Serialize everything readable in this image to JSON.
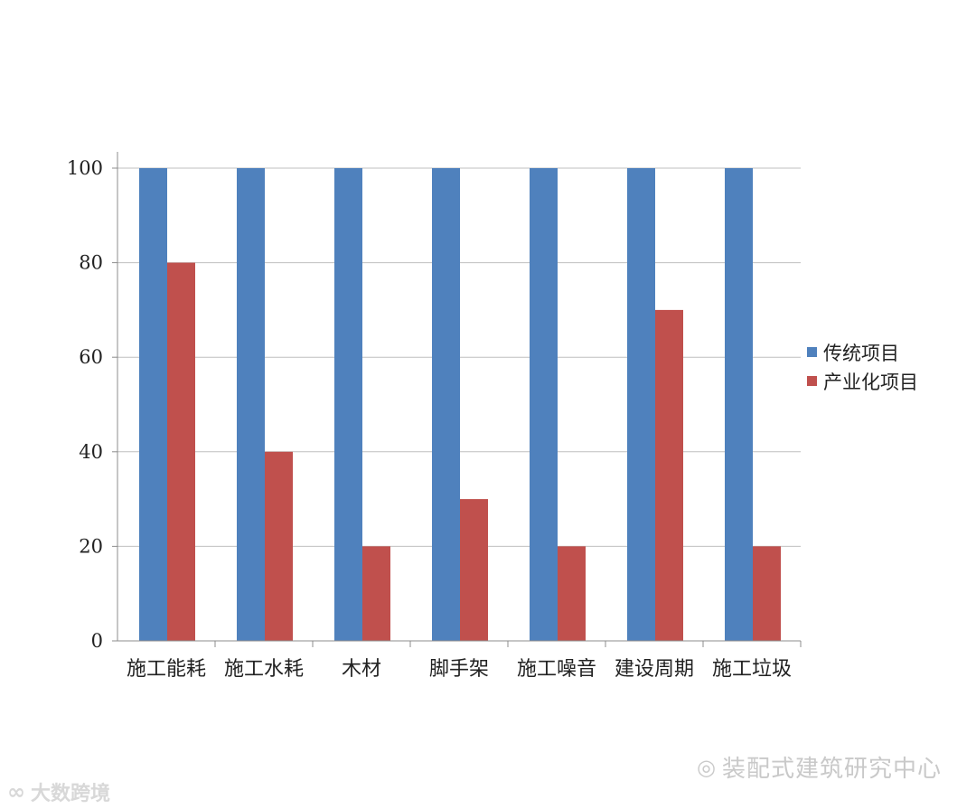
{
  "chart_data": {
    "type": "bar",
    "categories": [
      "施工能耗",
      "施工水耗",
      "木材",
      "脚手架",
      "施工噪音",
      "建设周期",
      "施工垃圾"
    ],
    "series": [
      {
        "name": "传统项目",
        "values": [
          100,
          100,
          100,
          100,
          100,
          100,
          100
        ],
        "color": "#4f81bd"
      },
      {
        "name": "产业化项目",
        "values": [
          80,
          40,
          20,
          30,
          20,
          70,
          20
        ],
        "color": "#c0504d"
      }
    ],
    "ylim": [
      0,
      100
    ],
    "yticks": [
      "0",
      "20",
      "40",
      "60",
      "80",
      "100"
    ],
    "grid": true,
    "legend_position": "right"
  },
  "watermarks": {
    "right_text": "装配式建筑研究中心",
    "right_icon": "wechat-icon",
    "left_text": "大数跨境",
    "left_icon": "logo-icon"
  }
}
